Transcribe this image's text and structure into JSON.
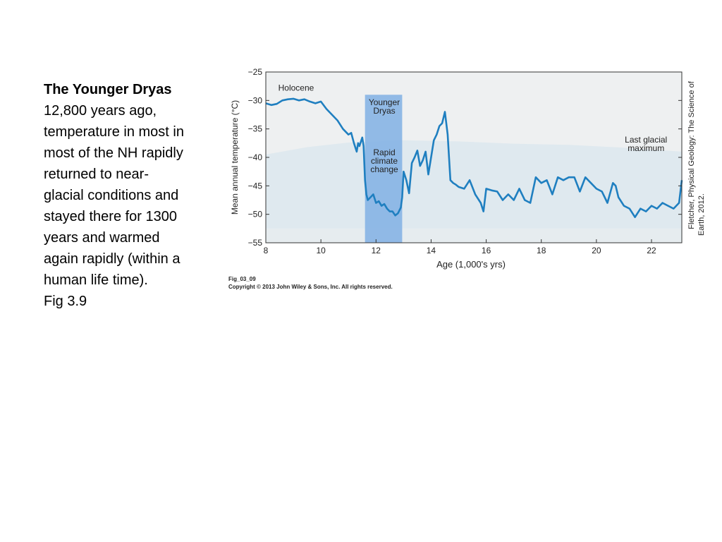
{
  "slide": {
    "title": "The Younger Dryas",
    "body_lines": [
      "12,800 years ago,",
      "temperature in most in",
      "most of the NH rapidly",
      "returned to near-",
      "glacial conditions and",
      "stayed there for 1300",
      "years and warmed",
      "again rapidly (within a",
      "human life time).",
      "Fig 3.9"
    ]
  },
  "figure": {
    "id": "Fig_03_09",
    "copyright": "Copyright © 2013 John Wiley & Sons, Inc. All rights reserved.",
    "credit_line1": "Fletcher, Physical Geology: The Science of",
    "credit_line2": "Earth, 2012."
  },
  "chart_data": {
    "type": "line",
    "xlabel": "Age (1,000's yrs)",
    "ylabel": "Mean annual temperature (°C)",
    "xlim": [
      8,
      23.1
    ],
    "ylim": [
      -55,
      -25
    ],
    "xticks": [
      8,
      10,
      12,
      14,
      16,
      18,
      20,
      22
    ],
    "yticks": [
      -25,
      -30,
      -35,
      -40,
      -45,
      -50,
      -55
    ],
    "grid": false,
    "colors": {
      "line": "#1f7fc0",
      "band": "#86b4e4",
      "ice": "#dce8ef",
      "sky": "#eef0f1"
    },
    "annotations": [
      {
        "text": "Holocene",
        "x": 9.1,
        "y": -28.3
      },
      {
        "text": "Younger",
        "x": 12.3,
        "y": -30.8
      },
      {
        "text": "Dryas",
        "x": 12.3,
        "y": -32.3
      },
      {
        "text": "Rapid",
        "x": 12.3,
        "y": -39.6
      },
      {
        "text": "climate",
        "x": 12.3,
        "y": -41.1
      },
      {
        "text": "change",
        "x": 12.3,
        "y": -42.6
      },
      {
        "text": "Last glacial",
        "x": 21.8,
        "y": -37.4
      },
      {
        "text": "maximum",
        "x": 21.8,
        "y": -38.9
      }
    ],
    "bands": [
      {
        "label": "Younger Dryas",
        "x0": 11.6,
        "x1": 12.95
      }
    ],
    "series": [
      {
        "x": [
          8.0,
          8.2,
          8.4,
          8.6,
          8.8,
          9.0,
          9.2,
          9.4,
          9.6,
          9.8,
          10.0,
          10.2,
          10.4,
          10.6,
          10.8,
          11.0,
          11.1,
          11.2,
          11.3,
          11.35,
          11.4,
          11.5,
          11.55,
          11.6,
          11.65,
          11.7,
          11.8,
          11.9,
          12.0,
          12.1,
          12.2,
          12.3,
          12.4,
          12.5,
          12.6,
          12.7,
          12.8,
          12.9,
          12.95,
          13.0,
          13.1,
          13.2,
          13.3,
          13.4,
          13.5,
          13.6,
          13.7,
          13.8,
          13.9,
          14.0,
          14.1,
          14.2,
          14.3,
          14.4,
          14.5,
          14.6,
          14.7,
          14.8,
          14.9,
          15.0,
          15.2,
          15.4,
          15.6,
          15.8,
          15.9,
          16.0,
          16.2,
          16.4,
          16.6,
          16.8,
          17.0,
          17.2,
          17.4,
          17.6,
          17.8,
          18.0,
          18.2,
          18.4,
          18.6,
          18.8,
          19.0,
          19.2,
          19.4,
          19.6,
          19.8,
          20.0,
          20.2,
          20.4,
          20.6,
          20.7,
          20.8,
          21.0,
          21.2,
          21.4,
          21.6,
          21.8,
          22.0,
          22.2,
          22.4,
          22.6,
          22.8,
          23.0,
          23.1
        ],
        "y": [
          -30.5,
          -30.8,
          -30.6,
          -30.0,
          -29.8,
          -29.7,
          -30.0,
          -29.8,
          -30.2,
          -30.5,
          -30.2,
          -31.5,
          -32.5,
          -33.5,
          -35.0,
          -36.0,
          -35.7,
          -37.5,
          -39.0,
          -37.5,
          -38.0,
          -36.5,
          -38.0,
          -44.0,
          -46.5,
          -47.5,
          -47.0,
          -46.5,
          -48.0,
          -47.7,
          -48.5,
          -48.2,
          -49.0,
          -49.5,
          -49.5,
          -50.2,
          -49.8,
          -48.8,
          -47.0,
          -42.5,
          -44.0,
          -46.3,
          -41.0,
          -40.0,
          -38.8,
          -41.5,
          -40.5,
          -39.0,
          -43.0,
          -40.0,
          -37.0,
          -36.0,
          -34.5,
          -34.0,
          -32.0,
          -36.0,
          -44.0,
          -44.5,
          -44.8,
          -45.2,
          -45.5,
          -44.0,
          -46.5,
          -48.0,
          -49.5,
          -45.5,
          -45.8,
          -46.0,
          -47.5,
          -46.5,
          -47.5,
          -45.5,
          -47.5,
          -48.0,
          -43.5,
          -44.5,
          -44.0,
          -46.5,
          -43.5,
          -44.0,
          -43.5,
          -43.5,
          -46.0,
          -43.5,
          -44.5,
          -45.5,
          -46.0,
          -48.0,
          -44.5,
          -45.0,
          -47.0,
          -48.5,
          -49.0,
          -50.5,
          -49.0,
          -49.5,
          -48.5,
          -49.0,
          -48.0,
          -48.5,
          -49.0,
          -48.0,
          -44.0
        ]
      }
    ]
  }
}
